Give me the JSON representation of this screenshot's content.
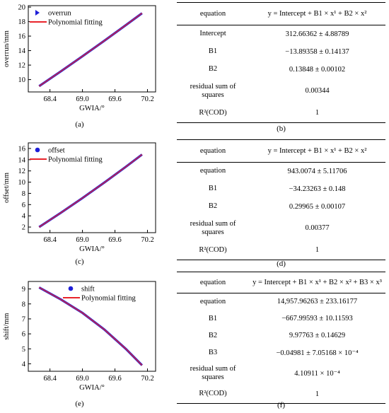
{
  "chart_data": [
    {
      "type": "line",
      "xlabel": "GWIA/°",
      "ylabel": "overrun/mm",
      "xlim": [
        68.0,
        70.35
      ],
      "ylim": [
        8.3,
        20.2
      ],
      "xticks": [
        "68.4",
        "69.0",
        "69.6",
        "70.2"
      ],
      "xtick_values": [
        68.4,
        69.0,
        69.6,
        70.2
      ],
      "yticks": [
        "10",
        "12",
        "14",
        "16",
        "18",
        "20"
      ],
      "ytick_values": [
        10,
        12,
        14,
        16,
        18,
        20
      ],
      "series": [
        {
          "name": "overrun",
          "marker": "triangle-right",
          "color": "#1f1fd8",
          "x": [
            68.2,
            68.6,
            69.0,
            69.4,
            69.8,
            70.1
          ],
          "y": [
            9.1,
            11.14,
            13.22,
            15.34,
            17.51,
            19.16
          ]
        },
        {
          "name": "Polynomial fitting",
          "style": "line",
          "color": "#e8242b",
          "x": [
            68.2,
            68.6,
            69.0,
            69.4,
            69.8,
            70.1
          ],
          "y": [
            9.1,
            11.14,
            13.22,
            15.34,
            17.51,
            19.16
          ]
        }
      ],
      "legend_position": "top-left",
      "caption": "(a)"
    },
    {
      "type": "line",
      "xlabel": "GWIA/°",
      "ylabel": "offset/mm",
      "xlim": [
        68.0,
        70.35
      ],
      "ylim": [
        1.0,
        17.0
      ],
      "xticks": [
        "68.4",
        "69.0",
        "69.6",
        "70.2"
      ],
      "xtick_values": [
        68.4,
        69.0,
        69.6,
        70.2
      ],
      "yticks": [
        "2",
        "4",
        "6",
        "8",
        "10",
        "12",
        "14",
        "16"
      ],
      "ytick_values": [
        2,
        4,
        6,
        8,
        10,
        12,
        14,
        16
      ],
      "series": [
        {
          "name": "offset",
          "marker": "circle",
          "color": "#1f1fd8",
          "x": [
            68.2,
            68.6,
            69.0,
            69.4,
            69.8,
            70.1
          ],
          "y": [
            2.0,
            4.54,
            7.17,
            9.9,
            12.73,
            14.92
          ]
        },
        {
          "name": "Polynomial fitting",
          "style": "line",
          "color": "#e8242b",
          "x": [
            68.2,
            68.6,
            69.0,
            69.4,
            69.8,
            70.1
          ],
          "y": [
            2.0,
            4.54,
            7.17,
            9.9,
            12.73,
            14.92
          ]
        }
      ],
      "legend_position": "top-left",
      "caption": "(c)"
    },
    {
      "type": "line",
      "xlabel": "GWIA/°",
      "ylabel": "shift/mm",
      "xlim": [
        68.0,
        70.35
      ],
      "ylim": [
        3.5,
        9.5
      ],
      "xticks": [
        "68.4",
        "69.0",
        "69.6",
        "70.2"
      ],
      "xtick_values": [
        68.4,
        69.0,
        69.6,
        70.2
      ],
      "yticks": [
        "4",
        "5",
        "6",
        "7",
        "8",
        "9"
      ],
      "ytick_values": [
        4,
        5,
        6,
        7,
        8,
        9
      ],
      "series": [
        {
          "name": "shift",
          "marker": "circle",
          "color": "#1f1fd8",
          "x": [
            68.2,
            68.6,
            69.0,
            69.4,
            69.8,
            70.1
          ],
          "y": [
            9.1,
            8.3,
            7.4,
            6.3,
            5.0,
            3.9
          ]
        },
        {
          "name": "Polynomial fitting",
          "style": "line",
          "color": "#e8242b",
          "x": [
            68.2,
            68.6,
            69.0,
            69.4,
            69.8,
            70.1
          ],
          "y": [
            9.1,
            8.3,
            7.4,
            6.3,
            5.0,
            3.9
          ]
        }
      ],
      "legend_position": "top-right",
      "caption": "(e)"
    }
  ],
  "tables": [
    {
      "caption": "(b)",
      "header": [
        "equation",
        "y = Intercept + B1 × x¹ + B2 × x²"
      ],
      "rows": [
        [
          "Intercept",
          "312.66362 ± 4.88789"
        ],
        [
          "B1",
          "−13.89358 ± 0.14137"
        ],
        [
          "B2",
          "0.13848 ± 0.00102"
        ],
        [
          "residual sum of squares",
          "0.00344"
        ],
        [
          "R²(COD)",
          "1"
        ]
      ]
    },
    {
      "caption": "(d)",
      "header": [
        "equation",
        "y = Intercept + B1 × x¹ + B2 × x²"
      ],
      "rows": [
        [
          "equation",
          "943.0074 ± 5.11706"
        ],
        [
          "B1",
          "−34.23263 ± 0.148"
        ],
        [
          "B2",
          "0.29965 ± 0.00107"
        ],
        [
          "residual sum of squares",
          "0.00377"
        ],
        [
          "R²(COD)",
          "1"
        ]
      ]
    },
    {
      "caption": "(f)",
      "header": [
        "equation",
        "y = Intercept + B1 × x¹ + B2 × x² + B3 × x³"
      ],
      "rows": [
        [
          "equation",
          "14,957.96263 ± 233.16177"
        ],
        [
          "B1",
          "−667.99593 ± 10.11593"
        ],
        [
          "B2",
          "9.97763 ± 0.14629"
        ],
        [
          "B3",
          "−0.04981 ± 7.05168 × 10⁻⁴"
        ],
        [
          "residual sum of squares",
          "4.10911 × 10⁻⁴"
        ],
        [
          "R²(COD)",
          "1"
        ]
      ]
    }
  ]
}
